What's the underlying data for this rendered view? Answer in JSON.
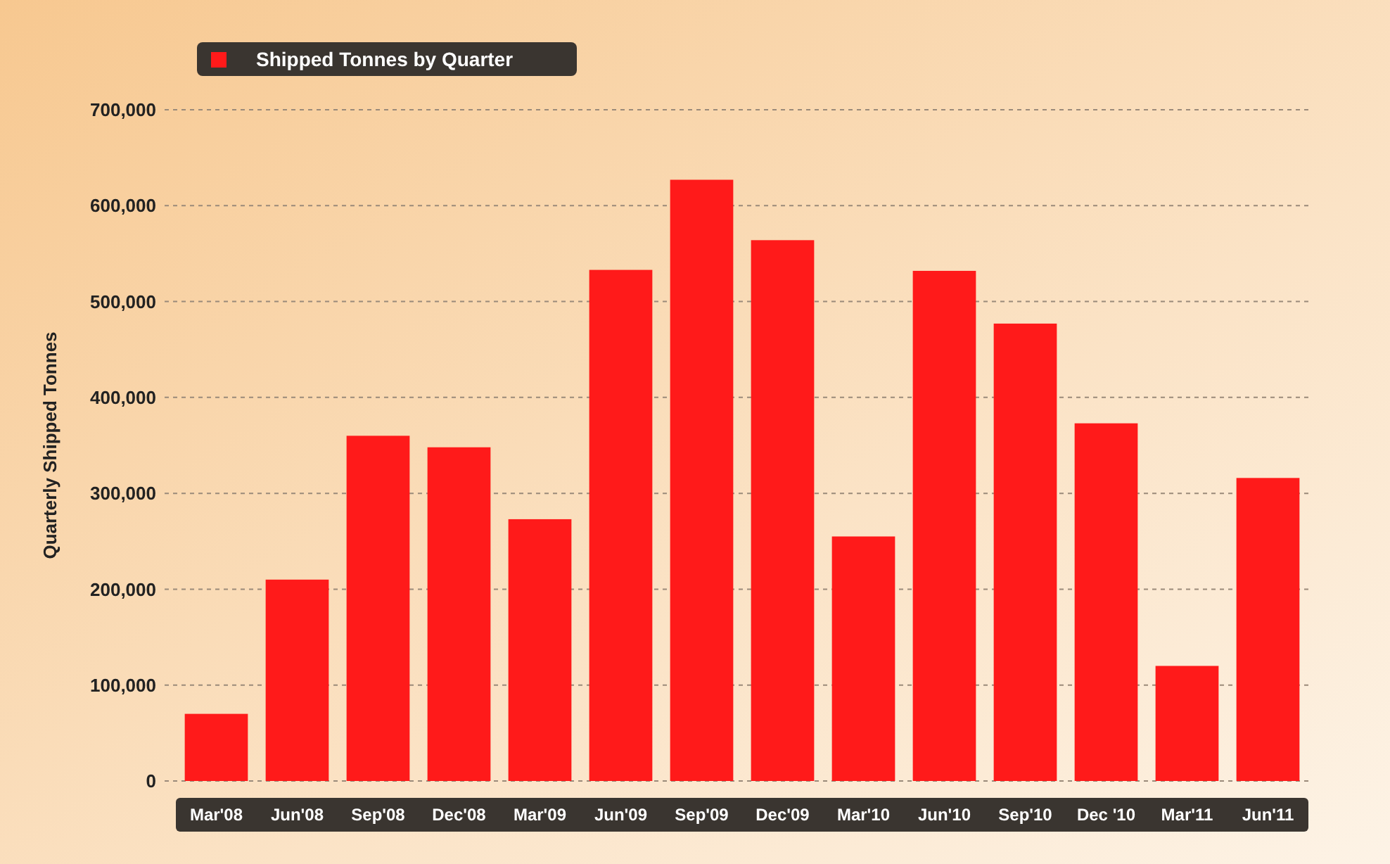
{
  "chart_data": {
    "type": "bar",
    "ylabel": "Quarterly Shipped Tonnes",
    "categories": [
      "Mar'08",
      "Jun'08",
      "Sep'08",
      "Dec'08",
      "Mar'09",
      "Jun'09",
      "Sep'09",
      "Dec'09",
      "Mar'10",
      "Jun'10",
      "Sep'10",
      "Dec '10",
      "Mar'11",
      "Jun'11"
    ],
    "series": [
      {
        "name": "Shipped Tonnes by Quarter",
        "color": "#ff1a1a",
        "values": [
          70000,
          210000,
          360000,
          348000,
          273000,
          533000,
          627000,
          564000,
          255000,
          532000,
          477000,
          373000,
          120000,
          316000
        ]
      }
    ],
    "ylim": [
      0,
      700000
    ],
    "yticks": [
      {
        "value": 0,
        "label": "0"
      },
      {
        "value": 100000,
        "label": "100,000"
      },
      {
        "value": 200000,
        "label": "200,000"
      },
      {
        "value": 300000,
        "label": "300,000"
      },
      {
        "value": 400000,
        "label": "400,000"
      },
      {
        "value": 500000,
        "label": "500,000"
      },
      {
        "value": 600000,
        "label": "600,000"
      },
      {
        "value": 700000,
        "label": "700,000"
      }
    ],
    "grid": "y",
    "legend": "top left"
  }
}
